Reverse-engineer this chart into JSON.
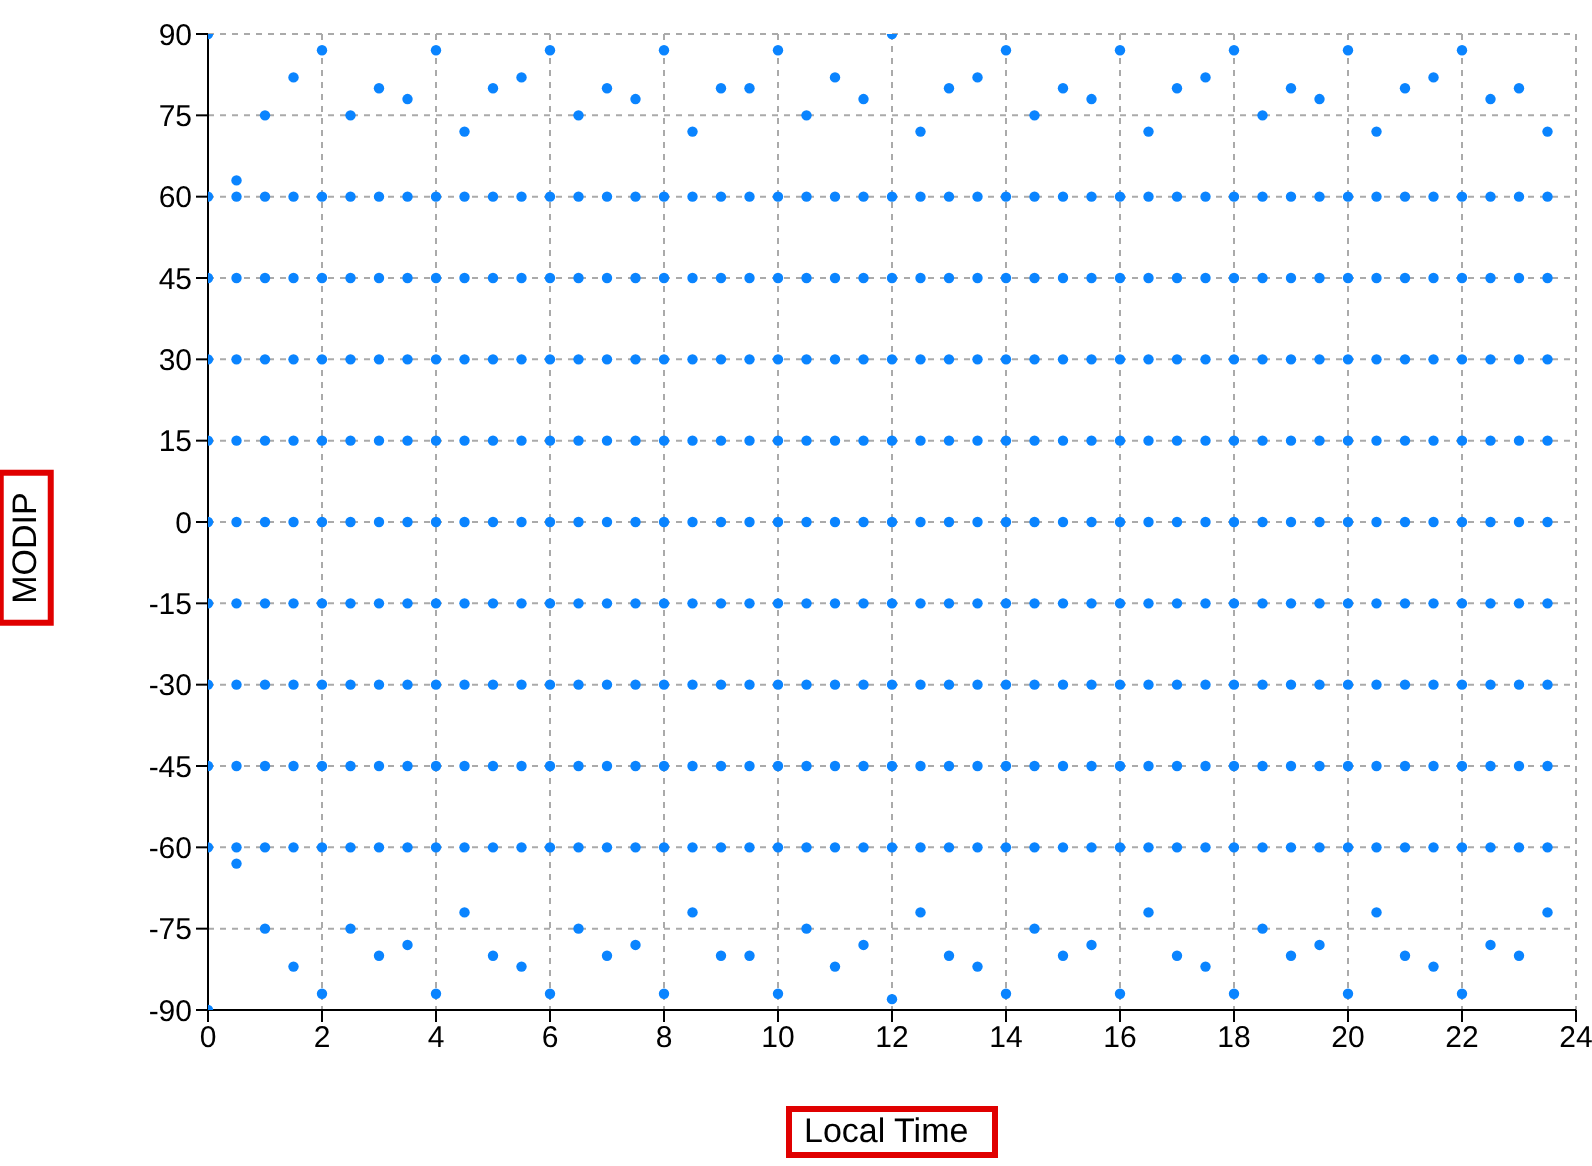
{
  "chart_data": {
    "type": "scatter",
    "xlabel": "Local Time",
    "ylabel": "MODIP",
    "xlim": [
      0,
      24
    ],
    "xticks": [
      0,
      2,
      4,
      6,
      8,
      10,
      12,
      14,
      16,
      18,
      20,
      22,
      24
    ],
    "ylim": [
      -90,
      90
    ],
    "yticks": [
      -90,
      -75,
      -60,
      -45,
      -30,
      -15,
      0,
      15,
      30,
      45,
      60,
      75,
      90
    ],
    "grid": true,
    "marker": "circle",
    "legend": false,
    "x": [
      0,
      0.5,
      1,
      1.5,
      2,
      2.5,
      3,
      3.5,
      4,
      4.5,
      5,
      5.5,
      6,
      6.5,
      7,
      7.5,
      8,
      8.5,
      9,
      9.5,
      10,
      10.5,
      11,
      11.5,
      12,
      12.5,
      13,
      13.5,
      14,
      14.5,
      15,
      15.5,
      16,
      16.5,
      17,
      17.5,
      18,
      18.5,
      19,
      19.5,
      20,
      20.5,
      21,
      21.5,
      22,
      22.5,
      23,
      23.5
    ],
    "series": [
      {
        "color": "#0a84ff",
        "values": [
          90,
          63,
          75,
          82,
          87,
          75,
          80,
          78,
          87,
          72,
          80,
          82,
          87,
          75,
          80,
          78,
          87,
          72,
          80,
          80,
          87,
          75,
          82,
          78,
          90,
          72,
          80,
          82,
          87,
          75,
          80,
          78,
          87,
          72,
          80,
          82,
          87,
          75,
          80,
          78,
          87,
          72,
          80,
          82,
          87,
          78,
          80,
          72
        ]
      },
      {
        "color": "#0a84ff",
        "values": [
          -90,
          -63,
          -75,
          -82,
          -87,
          -75,
          -80,
          -78,
          -87,
          -72,
          -80,
          -82,
          -87,
          -75,
          -80,
          -78,
          -87,
          -72,
          -80,
          -80,
          -87,
          -75,
          -82,
          -78,
          -88,
          -72,
          -80,
          -82,
          -87,
          -75,
          -80,
          -78,
          -87,
          -72,
          -80,
          -82,
          -87,
          -75,
          -80,
          -78,
          -87,
          -72,
          -80,
          -82,
          -87,
          -78,
          -80,
          -72
        ]
      },
      {
        "color": "#0a84ff",
        "values": [
          60,
          60,
          60,
          60,
          60,
          60,
          60,
          60,
          60,
          60,
          60,
          60,
          60,
          60,
          60,
          60,
          60,
          60,
          60,
          60,
          60,
          60,
          60,
          60,
          60,
          60,
          60,
          60,
          60,
          60,
          60,
          60,
          60,
          60,
          60,
          60,
          60,
          60,
          60,
          60,
          60,
          60,
          60,
          60,
          60,
          60,
          60,
          60
        ]
      },
      {
        "color": "#0a84ff",
        "values": [
          45,
          45,
          45,
          45,
          45,
          45,
          45,
          45,
          45,
          45,
          45,
          45,
          45,
          45,
          45,
          45,
          45,
          45,
          45,
          45,
          45,
          45,
          45,
          45,
          45,
          45,
          45,
          45,
          45,
          45,
          45,
          45,
          45,
          45,
          45,
          45,
          45,
          45,
          45,
          45,
          45,
          45,
          45,
          45,
          45,
          45,
          45,
          45
        ]
      },
      {
        "color": "#0a84ff",
        "values": [
          30,
          30,
          30,
          30,
          30,
          30,
          30,
          30,
          30,
          30,
          30,
          30,
          30,
          30,
          30,
          30,
          30,
          30,
          30,
          30,
          30,
          30,
          30,
          30,
          30,
          30,
          30,
          30,
          30,
          30,
          30,
          30,
          30,
          30,
          30,
          30,
          30,
          30,
          30,
          30,
          30,
          30,
          30,
          30,
          30,
          30,
          30,
          30
        ]
      },
      {
        "color": "#0a84ff",
        "values": [
          15,
          15,
          15,
          15,
          15,
          15,
          15,
          15,
          15,
          15,
          15,
          15,
          15,
          15,
          15,
          15,
          15,
          15,
          15,
          15,
          15,
          15,
          15,
          15,
          15,
          15,
          15,
          15,
          15,
          15,
          15,
          15,
          15,
          15,
          15,
          15,
          15,
          15,
          15,
          15,
          15,
          15,
          15,
          15,
          15,
          15,
          15,
          15
        ]
      },
      {
        "color": "#0a84ff",
        "values": [
          0,
          0,
          0,
          0,
          0,
          0,
          0,
          0,
          0,
          0,
          0,
          0,
          0,
          0,
          0,
          0,
          0,
          0,
          0,
          0,
          0,
          0,
          0,
          0,
          0,
          0,
          0,
          0,
          0,
          0,
          0,
          0,
          0,
          0,
          0,
          0,
          0,
          0,
          0,
          0,
          0,
          0,
          0,
          0,
          0,
          0,
          0,
          0
        ]
      },
      {
        "color": "#0a84ff",
        "values": [
          -15,
          -15,
          -15,
          -15,
          -15,
          -15,
          -15,
          -15,
          -15,
          -15,
          -15,
          -15,
          -15,
          -15,
          -15,
          -15,
          -15,
          -15,
          -15,
          -15,
          -15,
          -15,
          -15,
          -15,
          -15,
          -15,
          -15,
          -15,
          -15,
          -15,
          -15,
          -15,
          -15,
          -15,
          -15,
          -15,
          -15,
          -15,
          -15,
          -15,
          -15,
          -15,
          -15,
          -15,
          -15,
          -15,
          -15,
          -15
        ]
      },
      {
        "color": "#0a84ff",
        "values": [
          -30,
          -30,
          -30,
          -30,
          -30,
          -30,
          -30,
          -30,
          -30,
          -30,
          -30,
          -30,
          -30,
          -30,
          -30,
          -30,
          -30,
          -30,
          -30,
          -30,
          -30,
          -30,
          -30,
          -30,
          -30,
          -30,
          -30,
          -30,
          -30,
          -30,
          -30,
          -30,
          -30,
          -30,
          -30,
          -30,
          -30,
          -30,
          -30,
          -30,
          -30,
          -30,
          -30,
          -30,
          -30,
          -30,
          -30,
          -30
        ]
      },
      {
        "color": "#0a84ff",
        "values": [
          -45,
          -45,
          -45,
          -45,
          -45,
          -45,
          -45,
          -45,
          -45,
          -45,
          -45,
          -45,
          -45,
          -45,
          -45,
          -45,
          -45,
          -45,
          -45,
          -45,
          -45,
          -45,
          -45,
          -45,
          -45,
          -45,
          -45,
          -45,
          -45,
          -45,
          -45,
          -45,
          -45,
          -45,
          -45,
          -45,
          -45,
          -45,
          -45,
          -45,
          -45,
          -45,
          -45,
          -45,
          -45,
          -45,
          -45,
          -45
        ]
      },
      {
        "color": "#0a84ff",
        "values": [
          -60,
          -60,
          -60,
          -60,
          -60,
          -60,
          -60,
          -60,
          -60,
          -60,
          -60,
          -60,
          -60,
          -60,
          -60,
          -60,
          -60,
          -60,
          -60,
          -60,
          -60,
          -60,
          -60,
          -60,
          -60,
          -60,
          -60,
          -60,
          -60,
          -60,
          -60,
          -60,
          -60,
          -60,
          -60,
          -60,
          -60,
          -60,
          -60,
          -60,
          -60,
          -60,
          -60,
          -60,
          -60,
          -60,
          -60,
          -60
        ]
      }
    ]
  }
}
